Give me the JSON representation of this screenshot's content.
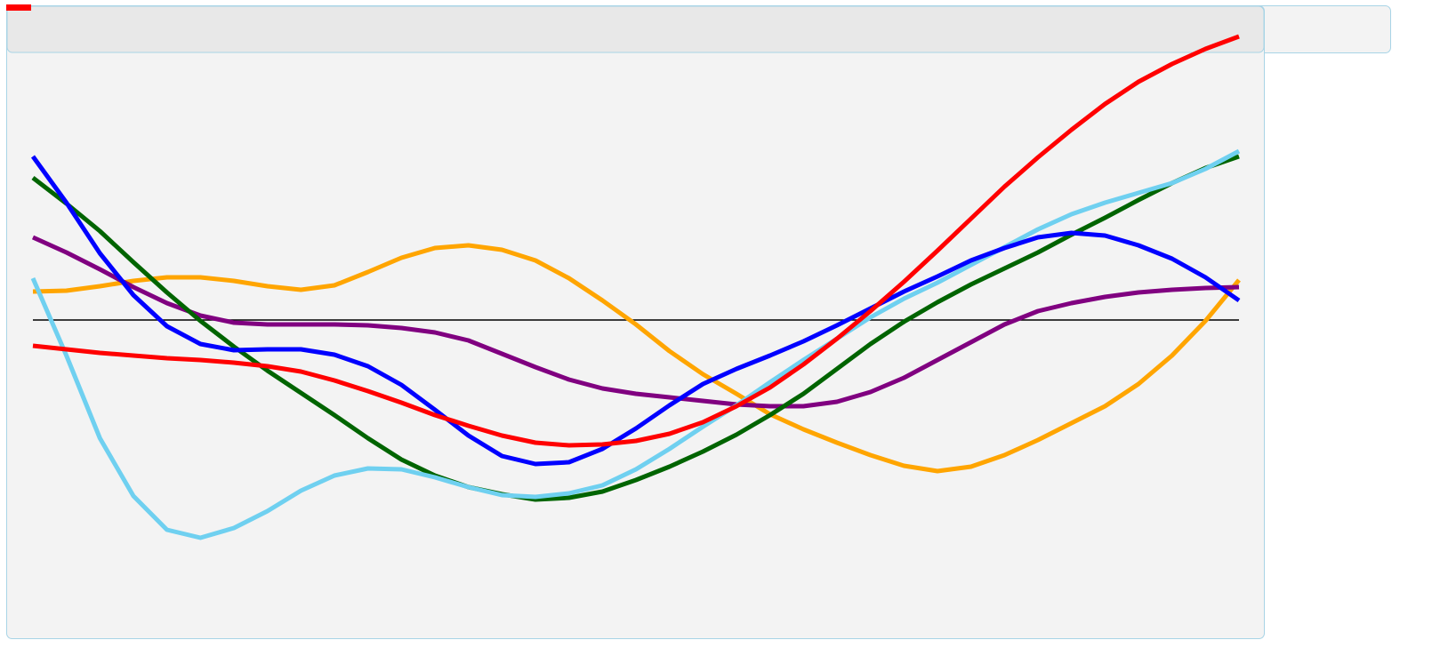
{
  "chart_data": {
    "type": "line",
    "categories": [
      null,
      null,
      null,
      null,
      null,
      null,
      null,
      null,
      null,
      null,
      null,
      null,
      null,
      null,
      null,
      null,
      null,
      null,
      null,
      null,
      null,
      null,
      null,
      null,
      null,
      null,
      null,
      null,
      null,
      null,
      null,
      null,
      null,
      null,
      null,
      null,
      null
    ],
    "ylim": [
      -354,
      300
    ],
    "reference_line": 0,
    "series": [
      {
        "color": "#ffa500",
        "values": [
          32,
          33,
          38,
          44,
          48,
          48,
          44,
          38,
          34,
          39,
          54,
          70,
          81,
          84,
          79,
          67,
          47,
          22,
          -5,
          -35,
          -61,
          -83,
          -106,
          -123,
          -138,
          -152,
          -164,
          -170,
          -165,
          -152,
          -135,
          -116,
          -97,
          -72,
          -40,
          -1,
          45
        ]
      },
      {
        "color": "#800080",
        "values": [
          93,
          76,
          57,
          37,
          19,
          5,
          -3,
          -5,
          -5,
          -5,
          -6,
          -9,
          -14,
          -23,
          -38,
          -53,
          -67,
          -77,
          -83,
          -87,
          -91,
          -95,
          -97,
          -97,
          -92,
          -81,
          -65,
          -45,
          -25,
          -5,
          10,
          19,
          26,
          31,
          34,
          36,
          37
        ]
      },
      {
        "color": "#006400",
        "values": [
          160,
          131,
          100,
          65,
          31,
          -1,
          -30,
          -57,
          -82,
          -107,
          -133,
          -157,
          -175,
          -188,
          -196,
          -202,
          -200,
          -193,
          -180,
          -165,
          -148,
          -129,
          -107,
          -83,
          -55,
          -27,
          -2,
          20,
          40,
          58,
          76,
          96,
          115,
          135,
          154,
          171,
          184
        ]
      },
      {
        "color": "#6fd0f0",
        "values": [
          47,
          -40,
          -133,
          -198,
          -236,
          -245,
          -234,
          -215,
          -192,
          -175,
          -167,
          -168,
          -177,
          -188,
          -197,
          -199,
          -195,
          -186,
          -168,
          -145,
          -120,
          -96,
          -70,
          -45,
          -21,
          3,
          24,
          42,
          62,
          82,
          102,
          119,
          132,
          143,
          154,
          170,
          190
        ]
      },
      {
        "color": "#0000ff",
        "values": [
          184,
          132,
          75,
          28,
          -7,
          -27,
          -34,
          -33,
          -33,
          -39,
          -52,
          -73,
          -101,
          -130,
          -153,
          -162,
          -160,
          -145,
          -122,
          -96,
          -72,
          -55,
          -40,
          -24,
          -6,
          13,
          32,
          49,
          67,
          81,
          93,
          98,
          95,
          84,
          69,
          48,
          22
        ]
      },
      {
        "color": "#ff0000",
        "values": [
          -29,
          -33,
          -37,
          -40,
          -43,
          -45,
          -48,
          -52,
          -58,
          -68,
          -80,
          -93,
          -107,
          -119,
          -130,
          -138,
          -141,
          -140,
          -136,
          -128,
          -115,
          -97,
          -76,
          -50,
          -21,
          10,
          43,
          78,
          114,
          150,
          183,
          214,
          243,
          268,
          288,
          305,
          319
        ]
      }
    ]
  }
}
